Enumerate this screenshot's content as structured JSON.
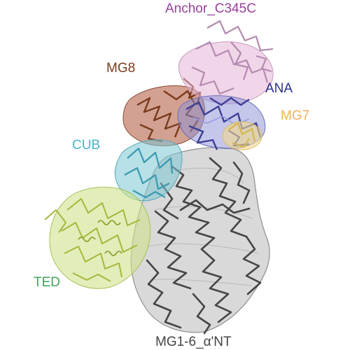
{
  "labels": {
    "anchor_c345c": "Anchor_C345C",
    "mg8": "MG8",
    "ana": "ANA",
    "mg7": "MG7",
    "cub": "CUB",
    "ted": "TED",
    "mg1_6": "MG1-6_α'NT"
  },
  "colors": {
    "anchor_c345c": "#9b3f9e",
    "mg8": "#7a3b1c",
    "ana": "#2b2f8a",
    "mg7": "#f0b257",
    "cub": "#47b3cc",
    "ted": "#3fa35a",
    "mg1_6": "#444444"
  }
}
